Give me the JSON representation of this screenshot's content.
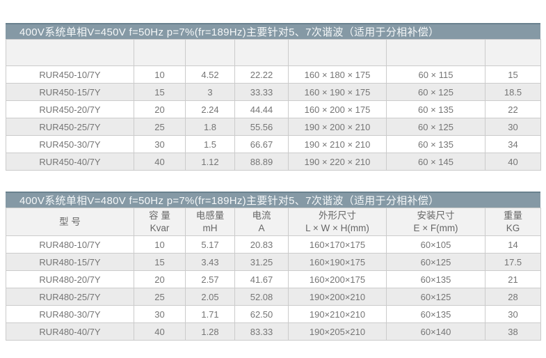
{
  "colors": {
    "title_bar_bg": "#8599a5",
    "title_bar_top_edge": "#69818e",
    "title_text": "#f4f7f8",
    "border": "#cbcbcb",
    "row_alt_bg": "#ebebeb",
    "header_bg": "#f2f2f2",
    "cell_text": "#757575"
  },
  "tables": [
    {
      "title": "400V系统单相V=450V f=50Hz p=7%(fr=189Hz)主要针对5、7次谐波（适用于分相补偿）",
      "headers": [
        "",
        "",
        "",
        "",
        "",
        "",
        ""
      ],
      "rows": [
        [
          "RUR450-10/7Y",
          "10",
          "4.52",
          "22.22",
          "160 × 180 × 175",
          "60 × 115",
          "15"
        ],
        [
          "RUR450-15/7Y",
          "15",
          "3",
          "33.33",
          "160 × 190 × 175",
          "60 × 125",
          "18.5"
        ],
        [
          "RUR450-20/7Y",
          "20",
          "2.24",
          "44.44",
          "160 × 200 × 175",
          "60 × 135",
          "22"
        ],
        [
          "RUR450-25/7Y",
          "25",
          "1.8",
          "55.56",
          "190 × 200 × 210",
          "60 × 125",
          "30"
        ],
        [
          "RUR450-30/7Y",
          "30",
          "1.5",
          "66.67",
          "190 × 210 × 210",
          "60 × 135",
          "34"
        ],
        [
          "RUR450-40/7Y",
          "40",
          "1.12",
          "88.89",
          "190 × 220 × 210",
          "60 × 145",
          "40"
        ]
      ]
    },
    {
      "title": "400V系统单相V=480V f=50Hz p=7%(fr=189Hz)主要针对5、7次谐波（适用于分相补偿）",
      "headers": [
        {
          "line1": "型 号",
          "line2": ""
        },
        {
          "line1": "容 量",
          "line2": "Kvar"
        },
        {
          "line1": "电感量",
          "line2": "mH"
        },
        {
          "line1": "电流",
          "line2": "A"
        },
        {
          "line1": "外形尺寸",
          "line2": "L × W × H(mm)"
        },
        {
          "line1": "安装尺寸",
          "line2": "E × F(mm)"
        },
        {
          "line1": "重量",
          "line2": "KG"
        }
      ],
      "rows": [
        [
          "RUR480-10/7Y",
          "10",
          "5.17",
          "20.83",
          "160×170×175",
          "60×105",
          "14"
        ],
        [
          "RUR480-15/7Y",
          "15",
          "3.43",
          "31.25",
          "160×190×175",
          "60×125",
          "17.5"
        ],
        [
          "RUR480-20/7Y",
          "20",
          "2.57",
          "41.67",
          "160×200×175",
          "60×135",
          "21"
        ],
        [
          "RUR480-25/7Y",
          "25",
          "2.05",
          "52.08",
          "190×200×210",
          "60×125",
          "28"
        ],
        [
          "RUR480-30/7Y",
          "30",
          "1.71",
          "62.50",
          "190×210×210",
          "60×135",
          "30"
        ],
        [
          "RUR480-40/7Y",
          "40",
          "1.28",
          "83.33",
          "190×205×210",
          "60×140",
          "38"
        ]
      ]
    }
  ]
}
